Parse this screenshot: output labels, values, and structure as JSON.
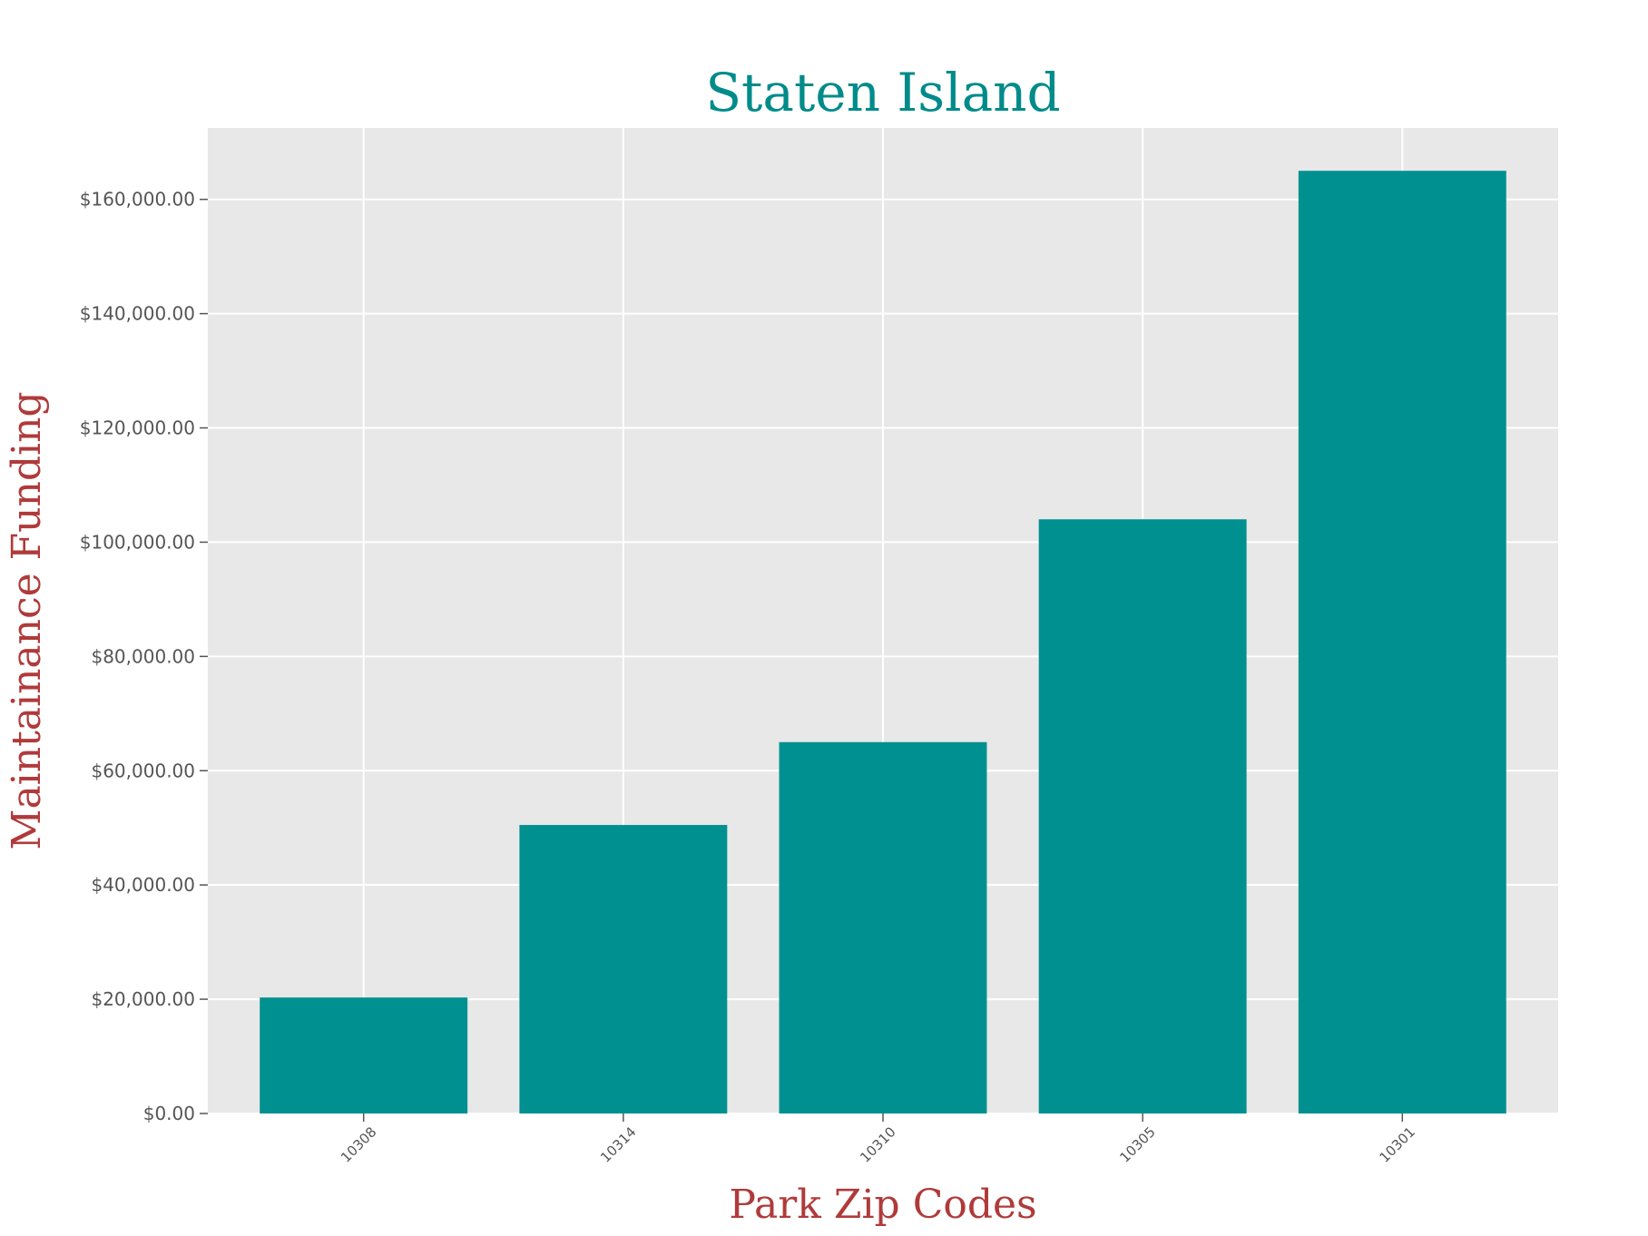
{
  "chart_data": {
    "type": "bar",
    "title": "Staten Island",
    "xlabel": "Park Zip Codes",
    "ylabel": "Maintainance Funding",
    "categories": [
      "10308",
      "10314",
      "10310",
      "10305",
      "10301"
    ],
    "values": [
      20300,
      50500,
      65000,
      104000,
      165000
    ],
    "ylim": [
      0,
      172500
    ],
    "yticks": [
      0,
      20000,
      40000,
      60000,
      80000,
      100000,
      120000,
      140000,
      160000
    ],
    "ytick_labels": [
      "$0.00",
      "$20,000.00",
      "$40,000.00",
      "$60,000.00",
      "$80,000.00",
      "$100,000.00",
      "$120,000.00",
      "$140,000.00",
      "$160,000.00"
    ],
    "grid": true,
    "colors": {
      "bar": "#009090",
      "title": "#008b8b",
      "axis_label": "#b03a3a",
      "plot_background": "#e8e8e8",
      "grid": "#ffffff"
    }
  }
}
